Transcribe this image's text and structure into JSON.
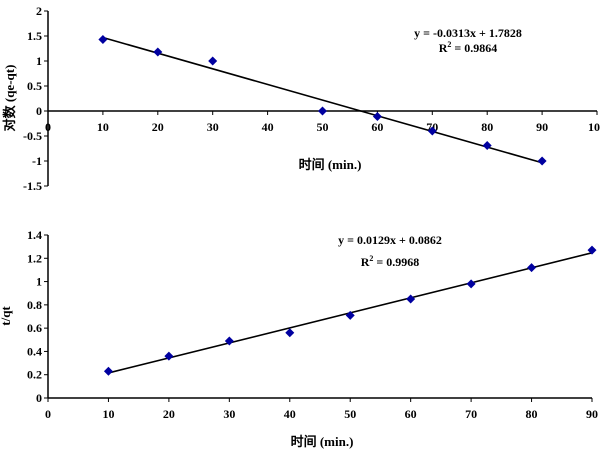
{
  "chart_data": [
    {
      "type": "scatter",
      "x": [
        10,
        20,
        30,
        50,
        60,
        70,
        80,
        90
      ],
      "y": [
        1.43,
        1.18,
        1.0,
        0.0,
        -0.11,
        -0.4,
        -0.69,
        -1.0
      ],
      "xlabel": "时间 (min.)",
      "ylabel": "对数 (qe-qt)",
      "xlim": [
        0,
        100
      ],
      "ylim": [
        -1.5,
        2
      ],
      "xticks": [
        "0",
        "10",
        "20",
        "30",
        "40",
        "50",
        "60",
        "70",
        "80",
        "90",
        "100"
      ],
      "yticks": [
        "-1.5",
        "-1",
        "-0.5",
        "0",
        "0.5",
        "1",
        "1.5",
        "2"
      ],
      "trendline": {
        "slope": -0.0313,
        "intercept": 1.7828,
        "x_range": [
          10,
          90
        ]
      },
      "equation": "y = -0.0313x + 1.7828",
      "r2_label": "R",
      "r2_value": " = 0.9864",
      "marker_color": "#0000a0",
      "line_color": "#000000",
      "grid": false
    },
    {
      "type": "scatter",
      "x": [
        10,
        20,
        30,
        40,
        50,
        60,
        70,
        80,
        90
      ],
      "y": [
        0.23,
        0.36,
        0.49,
        0.56,
        0.71,
        0.85,
        0.98,
        1.12,
        1.27
      ],
      "xlabel": "时间 (min.)",
      "ylabel": "t/qt",
      "xlim": [
        0,
        90
      ],
      "ylim": [
        0,
        1.4
      ],
      "xticks": [
        "0",
        "10",
        "20",
        "30",
        "40",
        "50",
        "60",
        "70",
        "80",
        "90"
      ],
      "yticks": [
        "0",
        "0.2",
        "0.4",
        "0.6",
        "0.8",
        "1",
        "1.2",
        "1.4"
      ],
      "trendline": {
        "slope": 0.0129,
        "intercept": 0.0862,
        "x_range": [
          10,
          90
        ]
      },
      "equation": "y = 0.0129x + 0.0862",
      "r2_label": "R",
      "r2_value": " = 0.9968",
      "marker_color": "#0000a0",
      "line_color": "#000000",
      "grid": false
    }
  ]
}
